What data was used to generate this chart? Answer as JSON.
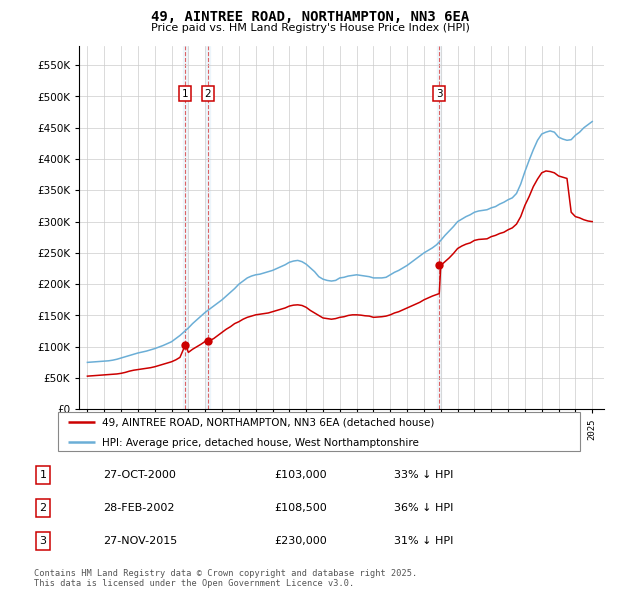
{
  "title": "49, AINTREE ROAD, NORTHAMPTON, NN3 6EA",
  "subtitle": "Price paid vs. HM Land Registry's House Price Index (HPI)",
  "background_color": "#ffffff",
  "plot_bg_color": "#ffffff",
  "grid_color": "#cccccc",
  "hpi_color": "#6baed6",
  "price_color": "#cc0000",
  "transactions": [
    {
      "num": 1,
      "date_label": "27-OCT-2000",
      "price": 103000,
      "year": 2000.82,
      "pct": "33% ↓ HPI"
    },
    {
      "num": 2,
      "date_label": "28-FEB-2002",
      "price": 108500,
      "year": 2002.16,
      "pct": "36% ↓ HPI"
    },
    {
      "num": 3,
      "date_label": "27-NOV-2015",
      "price": 230000,
      "year": 2015.91,
      "pct": "31% ↓ HPI"
    }
  ],
  "legend_entries": [
    "49, AINTREE ROAD, NORTHAMPTON, NN3 6EA (detached house)",
    "HPI: Average price, detached house, West Northamptonshire"
  ],
  "footer": "Contains HM Land Registry data © Crown copyright and database right 2025.\nThis data is licensed under the Open Government Licence v3.0.",
  "ylim": [
    0,
    580000
  ],
  "yticks": [
    0,
    50000,
    100000,
    150000,
    200000,
    250000,
    300000,
    350000,
    400000,
    450000,
    500000,
    550000
  ],
  "xmin": 1994.5,
  "xmax": 2025.7,
  "years_hpi": [
    1995,
    1995.25,
    1995.5,
    1995.75,
    1996,
    1996.25,
    1996.5,
    1996.75,
    1997,
    1997.25,
    1997.5,
    1997.75,
    1998,
    1998.25,
    1998.5,
    1998.75,
    1999,
    1999.25,
    1999.5,
    1999.75,
    2000,
    2000.25,
    2000.5,
    2000.75,
    2001,
    2001.25,
    2001.5,
    2001.75,
    2002,
    2002.25,
    2002.5,
    2002.75,
    2003,
    2003.25,
    2003.5,
    2003.75,
    2004,
    2004.25,
    2004.5,
    2004.75,
    2005,
    2005.25,
    2005.5,
    2005.75,
    2006,
    2006.25,
    2006.5,
    2006.75,
    2007,
    2007.25,
    2007.5,
    2007.75,
    2008,
    2008.25,
    2008.5,
    2008.75,
    2009,
    2009.25,
    2009.5,
    2009.75,
    2010,
    2010.25,
    2010.5,
    2010.75,
    2011,
    2011.25,
    2011.5,
    2011.75,
    2012,
    2012.25,
    2012.5,
    2012.75,
    2013,
    2013.25,
    2013.5,
    2013.75,
    2014,
    2014.25,
    2014.5,
    2014.75,
    2015,
    2015.25,
    2015.5,
    2015.75,
    2016,
    2016.25,
    2016.5,
    2016.75,
    2017,
    2017.25,
    2017.5,
    2017.75,
    2018,
    2018.25,
    2018.5,
    2018.75,
    2019,
    2019.25,
    2019.5,
    2019.75,
    2020,
    2020.25,
    2020.5,
    2020.75,
    2021,
    2021.25,
    2021.5,
    2021.75,
    2022,
    2022.25,
    2022.5,
    2022.75,
    2023,
    2023.25,
    2023.5,
    2023.75,
    2024,
    2024.25,
    2024.5,
    2024.75,
    2025
  ],
  "hpi_values": [
    75000,
    75500,
    76000,
    76500,
    77000,
    77500,
    78500,
    80000,
    82000,
    84000,
    86000,
    88000,
    90000,
    91500,
    93000,
    95000,
    97000,
    99500,
    102000,
    105000,
    108000,
    113000,
    118000,
    124000,
    130000,
    137000,
    143000,
    149000,
    155000,
    160000,
    165000,
    170000,
    175000,
    181000,
    187000,
    193000,
    200000,
    205000,
    210000,
    213000,
    215000,
    216000,
    218000,
    220000,
    222000,
    225000,
    228000,
    231000,
    235000,
    237000,
    238000,
    236000,
    232000,
    226000,
    220000,
    212000,
    208000,
    206000,
    205000,
    206000,
    210000,
    211000,
    213000,
    214000,
    215000,
    214000,
    213000,
    212000,
    210000,
    210000,
    210000,
    211000,
    215000,
    219000,
    222000,
    226000,
    230000,
    235000,
    240000,
    245000,
    250000,
    254000,
    258000,
    263000,
    270000,
    278000,
    285000,
    292000,
    300000,
    304000,
    308000,
    311000,
    315000,
    317000,
    318000,
    319000,
    322000,
    324000,
    328000,
    331000,
    335000,
    338000,
    345000,
    360000,
    380000,
    398000,
    415000,
    430000,
    440000,
    443000,
    445000,
    443000,
    435000,
    432000,
    430000,
    431000,
    438000,
    443000,
    450000,
    455000,
    460000
  ],
  "years_price": [
    1995,
    1995.25,
    1995.5,
    1995.75,
    1996,
    1996.25,
    1996.5,
    1996.75,
    1997,
    1997.25,
    1997.5,
    1997.75,
    1998,
    1998.25,
    1998.5,
    1998.75,
    1999,
    1999.25,
    1999.5,
    1999.75,
    2000,
    2000.25,
    2000.5,
    2000.82,
    2001,
    2001.25,
    2001.5,
    2001.75,
    2002,
    2002.16,
    2002.5,
    2002.75,
    2003,
    2003.25,
    2003.5,
    2003.75,
    2004,
    2004.25,
    2004.5,
    2004.75,
    2005,
    2005.25,
    2005.5,
    2005.75,
    2006,
    2006.25,
    2006.5,
    2006.75,
    2007,
    2007.25,
    2007.5,
    2007.75,
    2008,
    2008.25,
    2008.5,
    2008.75,
    2009,
    2009.25,
    2009.5,
    2009.75,
    2010,
    2010.25,
    2010.5,
    2010.75,
    2011,
    2011.25,
    2011.5,
    2011.75,
    2012,
    2012.25,
    2012.5,
    2012.75,
    2013,
    2013.25,
    2013.5,
    2013.75,
    2014,
    2014.25,
    2014.5,
    2014.75,
    2015,
    2015.25,
    2015.5,
    2015.91,
    2016,
    2016.25,
    2016.5,
    2016.75,
    2017,
    2017.25,
    2017.5,
    2017.75,
    2018,
    2018.25,
    2018.5,
    2018.75,
    2019,
    2019.25,
    2019.5,
    2019.75,
    2020,
    2020.25,
    2020.5,
    2020.75,
    2021,
    2021.25,
    2021.5,
    2021.75,
    2022,
    2022.25,
    2022.5,
    2022.75,
    2023,
    2023.25,
    2023.5,
    2023.75,
    2024,
    2024.25,
    2024.5,
    2024.75,
    2025
  ],
  "price_values": [
    53000,
    53500,
    54000,
    54500,
    55000,
    55500,
    56000,
    56500,
    57500,
    59000,
    61000,
    62500,
    63500,
    64500,
    65500,
    66500,
    68000,
    70000,
    72000,
    74000,
    76000,
    79000,
    83000,
    103000,
    91000,
    96000,
    100000,
    104000,
    108500,
    108500,
    113000,
    118000,
    123000,
    128000,
    132000,
    137000,
    140000,
    144000,
    147000,
    149000,
    151000,
    152000,
    153000,
    154000,
    156000,
    158000,
    160000,
    162000,
    165000,
    166500,
    167000,
    166000,
    163000,
    158000,
    154000,
    150000,
    146000,
    145000,
    144000,
    145000,
    147000,
    148000,
    150000,
    151000,
    151000,
    150500,
    149500,
    149000,
    147000,
    147500,
    148000,
    149000,
    151000,
    154000,
    156000,
    159000,
    162000,
    165000,
    168000,
    171000,
    175000,
    178000,
    181000,
    185000,
    230000,
    236000,
    242000,
    249000,
    257000,
    261000,
    264000,
    266000,
    270000,
    271500,
    272000,
    272500,
    276000,
    278000,
    281000,
    283000,
    287000,
    290000,
    296000,
    308000,
    326000,
    340000,
    356000,
    368000,
    378000,
    381000,
    380000,
    378000,
    373000,
    371000,
    369000,
    315000,
    308000,
    306000,
    303000,
    301000,
    300000
  ]
}
